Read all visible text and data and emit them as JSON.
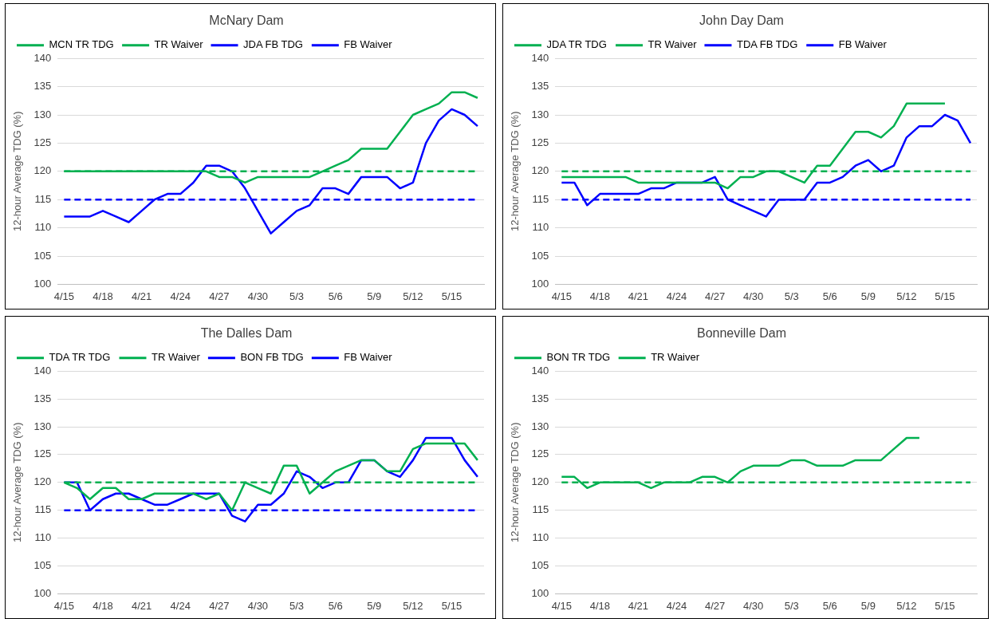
{
  "chart_data": [
    {
      "type": "line",
      "title": "McNary Dam",
      "ylabel": "12-hour Average TDG (%)",
      "categories": [
        "4/15",
        null,
        null,
        "4/18",
        null,
        null,
        "4/21",
        null,
        null,
        "4/24",
        null,
        null,
        "4/27",
        null,
        null,
        "4/30",
        null,
        null,
        "5/3",
        null,
        null,
        "5/6",
        null,
        null,
        "5/9",
        null,
        null,
        "5/12",
        null,
        null,
        "5/15",
        null,
        null
      ],
      "ylim": [
        100,
        140
      ],
      "yticks": [
        100,
        105,
        110,
        115,
        120,
        125,
        130,
        135,
        140
      ],
      "grid": "y",
      "legend": "top left",
      "marker": "none",
      "series": [
        {
          "name": "MCN TR TDG",
          "color": "#00b050",
          "line_style": "solid",
          "values": [
            120,
            120,
            120,
            120,
            120,
            120,
            120,
            120,
            120,
            120,
            120,
            120,
            119,
            119,
            118,
            119,
            119,
            119,
            119,
            119,
            120,
            121,
            122,
            124,
            124,
            124,
            127,
            130,
            131,
            132,
            134,
            134,
            133
          ]
        },
        {
          "name": "TR Waiver",
          "color": "#00b050",
          "line_style": "dashed",
          "values": [
            120,
            120,
            120,
            120,
            120,
            120,
            120,
            120,
            120,
            120,
            120,
            120,
            120,
            120,
            120,
            120,
            120,
            120,
            120,
            120,
            120,
            120,
            120,
            120,
            120,
            120,
            120,
            120,
            120,
            120,
            120,
            120,
            120
          ]
        },
        {
          "name": "JDA FB TDG",
          "color": "#0000ff",
          "line_style": "solid",
          "values": [
            112,
            112,
            112,
            113,
            112,
            111,
            113,
            115,
            116,
            116,
            118,
            121,
            121,
            120,
            117,
            113,
            109,
            111,
            113,
            114,
            117,
            117,
            116,
            119,
            119,
            119,
            117,
            118,
            125,
            129,
            131,
            130,
            128
          ]
        },
        {
          "name": "FB Waiver",
          "color": "#0000ff",
          "line_style": "dashed",
          "values": [
            115,
            115,
            115,
            115,
            115,
            115,
            115,
            115,
            115,
            115,
            115,
            115,
            115,
            115,
            115,
            115,
            115,
            115,
            115,
            115,
            115,
            115,
            115,
            115,
            115,
            115,
            115,
            115,
            115,
            115,
            115,
            115,
            115
          ]
        }
      ]
    },
    {
      "type": "line",
      "title": "John Day Dam",
      "ylabel": "12-hour Average TDG (%)",
      "categories": [
        "4/15",
        null,
        null,
        "4/18",
        null,
        null,
        "4/21",
        null,
        null,
        "4/24",
        null,
        null,
        "4/27",
        null,
        null,
        "4/30",
        null,
        null,
        "5/3",
        null,
        null,
        "5/6",
        null,
        null,
        "5/9",
        null,
        null,
        "5/12",
        null,
        null,
        "5/15",
        null,
        null
      ],
      "ylim": [
        100,
        140
      ],
      "yticks": [
        100,
        105,
        110,
        115,
        120,
        125,
        130,
        135,
        140
      ],
      "grid": "y",
      "legend": "top left",
      "marker": "none",
      "series": [
        {
          "name": "JDA TR TDG",
          "color": "#00b050",
          "line_style": "solid",
          "values": [
            119,
            119,
            119,
            119,
            119,
            119,
            118,
            118,
            118,
            118,
            118,
            118,
            118,
            117,
            119,
            119,
            120,
            120,
            119,
            118,
            121,
            121,
            124,
            127,
            127,
            126,
            128,
            132,
            132,
            132,
            132,
            null,
            null
          ]
        },
        {
          "name": "TR Waiver",
          "color": "#00b050",
          "line_style": "dashed",
          "values": [
            120,
            120,
            120,
            120,
            120,
            120,
            120,
            120,
            120,
            120,
            120,
            120,
            120,
            120,
            120,
            120,
            120,
            120,
            120,
            120,
            120,
            120,
            120,
            120,
            120,
            120,
            120,
            120,
            120,
            120,
            120,
            120,
            120
          ]
        },
        {
          "name": "TDA FB TDG",
          "color": "#0000ff",
          "line_style": "solid",
          "values": [
            118,
            118,
            114,
            116,
            116,
            116,
            116,
            117,
            117,
            118,
            118,
            118,
            119,
            115,
            114,
            113,
            112,
            115,
            115,
            115,
            118,
            118,
            119,
            121,
            122,
            120,
            121,
            126,
            128,
            128,
            130,
            129,
            125
          ]
        },
        {
          "name": "FB Waiver",
          "color": "#0000ff",
          "line_style": "dashed",
          "values": [
            115,
            115,
            115,
            115,
            115,
            115,
            115,
            115,
            115,
            115,
            115,
            115,
            115,
            115,
            115,
            115,
            115,
            115,
            115,
            115,
            115,
            115,
            115,
            115,
            115,
            115,
            115,
            115,
            115,
            115,
            115,
            115,
            115
          ]
        }
      ]
    },
    {
      "type": "line",
      "title": "The Dalles Dam",
      "ylabel": "12-hour Average TDG (%)",
      "categories": [
        "4/15",
        null,
        null,
        "4/18",
        null,
        null,
        "4/21",
        null,
        null,
        "4/24",
        null,
        null,
        "4/27",
        null,
        null,
        "4/30",
        null,
        null,
        "5/3",
        null,
        null,
        "5/6",
        null,
        null,
        "5/9",
        null,
        null,
        "5/12",
        null,
        null,
        "5/15",
        null,
        null
      ],
      "ylim": [
        100,
        140
      ],
      "yticks": [
        100,
        105,
        110,
        115,
        120,
        125,
        130,
        135,
        140
      ],
      "grid": "y",
      "legend": "top left",
      "marker": "none",
      "series": [
        {
          "name": "TDA TR TDG",
          "color": "#00b050",
          "line_style": "solid",
          "values": [
            120,
            119,
            117,
            119,
            119,
            117,
            117,
            118,
            118,
            118,
            118,
            117,
            118,
            115,
            120,
            119,
            118,
            123,
            123,
            118,
            120,
            122,
            123,
            124,
            124,
            122,
            122,
            126,
            127,
            127,
            127,
            127,
            124
          ]
        },
        {
          "name": "TR Waiver",
          "color": "#00b050",
          "line_style": "dashed",
          "values": [
            120,
            120,
            120,
            120,
            120,
            120,
            120,
            120,
            120,
            120,
            120,
            120,
            120,
            120,
            120,
            120,
            120,
            120,
            120,
            120,
            120,
            120,
            120,
            120,
            120,
            120,
            120,
            120,
            120,
            120,
            120,
            120,
            120
          ]
        },
        {
          "name": "BON FB TDG",
          "color": "#0000ff",
          "line_style": "solid",
          "values": [
            120,
            120,
            115,
            117,
            118,
            118,
            117,
            116,
            116,
            117,
            118,
            118,
            118,
            114,
            113,
            116,
            116,
            118,
            122,
            121,
            119,
            120,
            120,
            124,
            124,
            122,
            121,
            124,
            128,
            128,
            128,
            124,
            121
          ]
        },
        {
          "name": "FB Waiver",
          "color": "#0000ff",
          "line_style": "dashed",
          "values": [
            115,
            115,
            115,
            115,
            115,
            115,
            115,
            115,
            115,
            115,
            115,
            115,
            115,
            115,
            115,
            115,
            115,
            115,
            115,
            115,
            115,
            115,
            115,
            115,
            115,
            115,
            115,
            115,
            115,
            115,
            115,
            115,
            115
          ]
        }
      ]
    },
    {
      "type": "line",
      "title": "Bonneville Dam",
      "ylabel": "12-hour Average TDG (%)",
      "categories": [
        "4/15",
        null,
        null,
        "4/18",
        null,
        null,
        "4/21",
        null,
        null,
        "4/24",
        null,
        null,
        "4/27",
        null,
        null,
        "4/30",
        null,
        null,
        "5/3",
        null,
        null,
        "5/6",
        null,
        null,
        "5/9",
        null,
        null,
        "5/12",
        null,
        null,
        "5/15",
        null,
        null
      ],
      "ylim": [
        100,
        140
      ],
      "yticks": [
        100,
        105,
        110,
        115,
        120,
        125,
        130,
        135,
        140
      ],
      "grid": "y",
      "legend": "top left",
      "marker": "none",
      "series": [
        {
          "name": "BON TR TDG",
          "color": "#00b050",
          "line_style": "solid",
          "values": [
            121,
            121,
            119,
            120,
            120,
            120,
            120,
            119,
            120,
            120,
            120,
            121,
            121,
            120,
            122,
            123,
            123,
            123,
            124,
            124,
            123,
            123,
            123,
            124,
            124,
            124,
            126,
            128,
            128,
            null,
            null,
            null,
            null
          ]
        },
        {
          "name": "TR Waiver",
          "color": "#00b050",
          "line_style": "dashed",
          "values": [
            120,
            120,
            120,
            120,
            120,
            120,
            120,
            120,
            120,
            120,
            120,
            120,
            120,
            120,
            120,
            120,
            120,
            120,
            120,
            120,
            120,
            120,
            120,
            120,
            120,
            120,
            120,
            120,
            120,
            120,
            120,
            120,
            120
          ]
        }
      ]
    }
  ]
}
